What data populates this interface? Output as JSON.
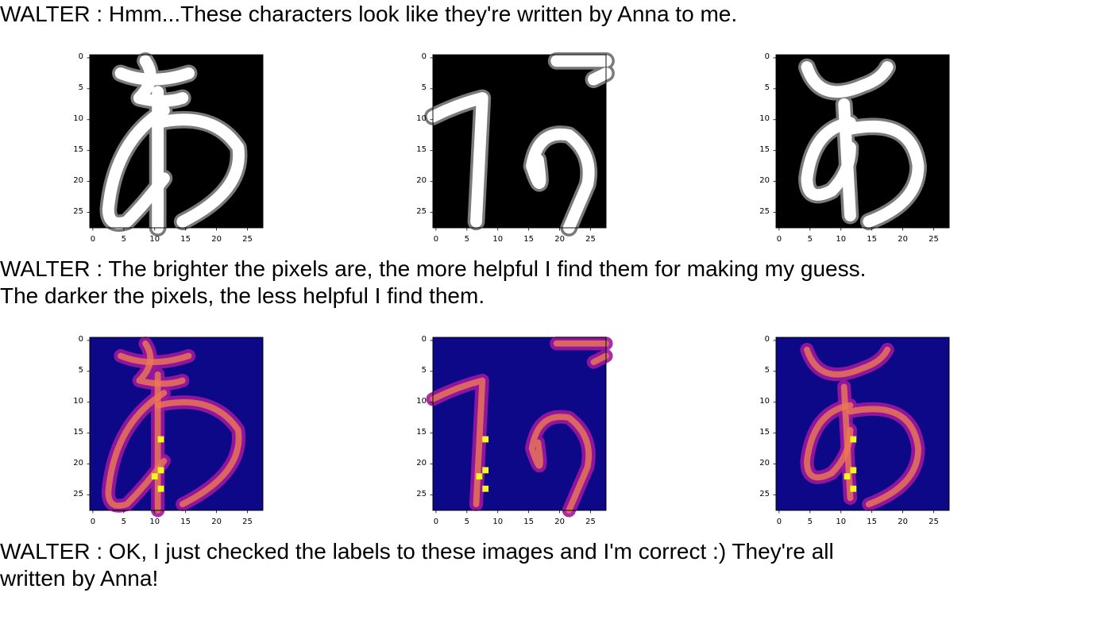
{
  "messages": [
    "WALTER : Hmm...These characters look like they're written by Anna to me.",
    "WALTER : The brighter the pixels are, the more helpful I find them for making my guess.\nThe darker the pixels, the less helpful I find them.",
    "WALTER : OK, I just checked the labels to these images and I'm correct :) They're all\nwritten by Anna!"
  ],
  "ticks": {
    "x": [
      "0",
      "5",
      "10",
      "15",
      "20",
      "25"
    ],
    "y": [
      "0",
      "5",
      "10",
      "15",
      "20",
      "25"
    ]
  },
  "figure_rows": [
    {
      "name": "character-images",
      "colormap": "gray",
      "panels": [
        "character-1",
        "character-2",
        "character-3"
      ]
    },
    {
      "name": "saliency-maps",
      "colormap": "plasma",
      "panels": [
        "saliency-1",
        "saliency-2",
        "saliency-3"
      ]
    }
  ],
  "colors": {
    "gray_low": "#000000",
    "gray_high": "#ffffff",
    "plasma_low": "#0d0887",
    "plasma_mid": "#9c179e",
    "plasma_mid2": "#ed7953",
    "plasma_high": "#f0f921"
  }
}
